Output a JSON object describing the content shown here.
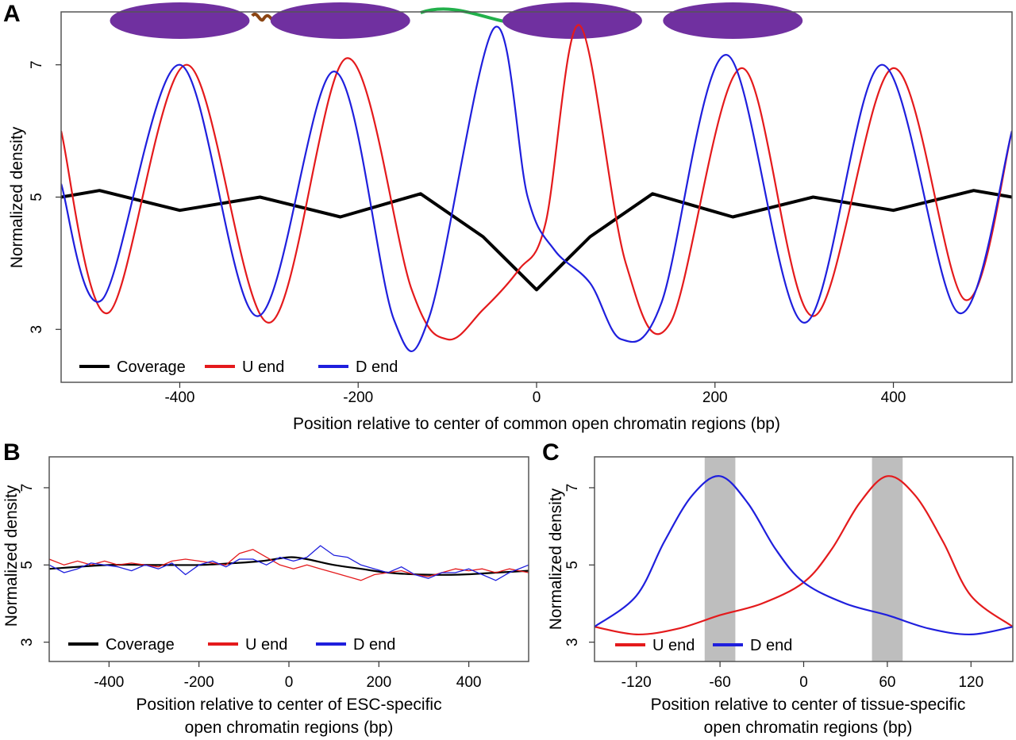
{
  "chart_data": [
    {
      "panel": "A",
      "type": "line",
      "xlabel": "Position relative to center of common open chromatin regions (bp)",
      "ylabel": "Normalized density",
      "xlim": [
        -533,
        533
      ],
      "ylim": [
        2.2,
        7.8
      ],
      "xticks": [
        -400,
        -200,
        0,
        200,
        400
      ],
      "xtick_labels": [
        "-400",
        "-200",
        "0",
        "200",
        "400"
      ],
      "yticks": [
        3,
        5,
        7
      ],
      "ytick_labels": [
        "3",
        "5",
        "7"
      ],
      "legend": "bottom-left",
      "grid": false,
      "nucleosome_diagram": {
        "nucleosomes_at": [
          -400,
          -220,
          40,
          220
        ],
        "nucleosome_color": "#7030A0",
        "linkers": [
          {
            "from": -308,
            "to": -308,
            "color": "#8B4513"
          },
          {
            "from": -130,
            "to": 50,
            "color": "#22B04B"
          },
          {
            "from": 213,
            "to": 213,
            "color": "#8B4513"
          }
        ]
      },
      "series": [
        {
          "name": "Coverage",
          "color": "#000000",
          "x": [
            -533,
            -490,
            -400,
            -310,
            -220,
            -130,
            -60,
            0,
            60,
            130,
            220,
            310,
            400,
            490,
            533
          ],
          "y": [
            5.0,
            5.1,
            4.8,
            5.0,
            4.7,
            5.05,
            4.4,
            3.6,
            4.4,
            5.05,
            4.7,
            5.0,
            4.8,
            5.1,
            5.0
          ]
        },
        {
          "name": "U end",
          "color": "#E41A1C",
          "x": [
            -533,
            -480,
            -392,
            -300,
            -213,
            -140,
            -100,
            -60,
            -20,
            10,
            48,
            100,
            150,
            230,
            310,
            400,
            480,
            533
          ],
          "y": [
            6.0,
            3.25,
            7.0,
            3.1,
            7.1,
            3.6,
            2.85,
            3.3,
            3.9,
            4.6,
            7.6,
            4.0,
            3.1,
            6.95,
            3.2,
            6.95,
            3.45,
            6.0
          ],
          "smooth": "free"
        },
        {
          "name": "D end",
          "color": "#1F1FDD",
          "x": [
            -533,
            -487,
            -400,
            -313,
            -227,
            -160,
            -120,
            -48,
            -10,
            20,
            60,
            95,
            140,
            213,
            300,
            387,
            473,
            533
          ],
          "y": [
            5.2,
            3.45,
            7.0,
            3.2,
            6.9,
            3.15,
            3.2,
            7.55,
            5.0,
            4.2,
            3.7,
            2.85,
            3.4,
            7.15,
            3.1,
            7.0,
            3.25,
            6.0
          ],
          "smooth": "free"
        }
      ]
    },
    {
      "panel": "B",
      "type": "line",
      "xlabel": "Position relative to center of ESC-specific open chromatin regions (bp)",
      "xlabel_lines": [
        "Position relative to center of ESC-specific",
        "open chromatin regions (bp)"
      ],
      "ylabel": "Normalized density",
      "xlim": [
        -533,
        533
      ],
      "ylim": [
        2.5,
        7.8
      ],
      "xticks": [
        -400,
        -200,
        0,
        200,
        400
      ],
      "xtick_labels": [
        "-400",
        "-200",
        "0",
        "200",
        "400"
      ],
      "yticks": [
        3,
        5,
        7
      ],
      "ytick_labels": [
        "3",
        "5",
        "7"
      ],
      "legend": "bottom-left",
      "grid": false,
      "series": [
        {
          "name": "Coverage",
          "color": "#000000",
          "x": [
            -533,
            -400,
            -300,
            -200,
            -120,
            -60,
            0,
            40,
            100,
            160,
            220,
            300,
            380,
            460,
            533
          ],
          "y": [
            4.9,
            5.0,
            5.0,
            5.0,
            5.05,
            5.1,
            5.2,
            5.15,
            5.0,
            4.9,
            4.8,
            4.75,
            4.75,
            4.8,
            4.85
          ],
          "smooth": "smooth"
        },
        {
          "name": "U end",
          "color": "#E41A1C",
          "x": [
            -533,
            -500,
            -470,
            -440,
            -410,
            -380,
            -350,
            -320,
            -290,
            -260,
            -230,
            -200,
            -170,
            -140,
            -110,
            -80,
            -50,
            -20,
            10,
            40,
            70,
            100,
            130,
            160,
            190,
            220,
            250,
            280,
            310,
            340,
            370,
            400,
            430,
            460,
            490,
            533
          ],
          "y": [
            5.15,
            5.0,
            5.1,
            5.0,
            5.1,
            5.0,
            5.05,
            5.0,
            4.95,
            5.1,
            5.15,
            5.1,
            5.05,
            5.0,
            5.3,
            5.4,
            5.2,
            5.0,
            4.9,
            5.0,
            4.9,
            4.8,
            4.7,
            4.6,
            4.75,
            4.8,
            4.85,
            4.75,
            4.7,
            4.8,
            4.9,
            4.85,
            4.9,
            4.8,
            4.9,
            4.8
          ]
        },
        {
          "name": "D end",
          "color": "#1F1FDD",
          "x": [
            -533,
            -500,
            -470,
            -440,
            -410,
            -380,
            -350,
            -320,
            -290,
            -260,
            -230,
            -200,
            -170,
            -140,
            -110,
            -80,
            -50,
            -20,
            10,
            40,
            70,
            100,
            130,
            160,
            190,
            220,
            250,
            280,
            310,
            340,
            370,
            400,
            430,
            460,
            490,
            533
          ],
          "y": [
            5.0,
            4.8,
            4.9,
            5.05,
            5.0,
            4.95,
            4.85,
            5.0,
            4.9,
            5.05,
            4.75,
            5.0,
            5.1,
            4.95,
            5.15,
            5.15,
            5.0,
            5.2,
            5.1,
            5.2,
            5.5,
            5.25,
            5.2,
            5.0,
            4.9,
            4.8,
            4.95,
            4.75,
            4.65,
            4.8,
            4.8,
            4.9,
            4.75,
            4.6,
            4.8,
            5.0
          ]
        }
      ]
    },
    {
      "panel": "C",
      "type": "line",
      "xlabel": "Position relative to center of tissue-specific open chromatin regions (bp)",
      "xlabel_lines": [
        "Position relative to center of tissue-specific",
        "open chromatin regions (bp)"
      ],
      "ylabel": "Normalized density",
      "xlim": [
        -150,
        150
      ],
      "ylim": [
        2.5,
        7.8
      ],
      "xticks": [
        -120,
        -60,
        0,
        60,
        120
      ],
      "xtick_labels": [
        "-120",
        "-60",
        "0",
        "60",
        "120"
      ],
      "yticks": [
        3,
        5,
        7
      ],
      "ytick_labels": [
        "3",
        "5",
        "7"
      ],
      "legend": "bottom-left",
      "grid": false,
      "shaded_bands": [
        {
          "from": -71,
          "to": -49,
          "color": "#BEBEBE"
        },
        {
          "from": 49,
          "to": 71,
          "color": "#BEBEBE"
        }
      ],
      "series": [
        {
          "name": "U end",
          "color": "#E41A1C",
          "x": [
            -150,
            -120,
            -90,
            -60,
            -30,
            0,
            20,
            40,
            60,
            80,
            100,
            120,
            150
          ],
          "y": [
            3.4,
            3.2,
            3.35,
            3.7,
            4.0,
            4.55,
            5.4,
            6.6,
            7.3,
            6.8,
            5.6,
            4.2,
            3.4
          ],
          "smooth": "smooth"
        },
        {
          "name": "D end",
          "color": "#1F1FDD",
          "x": [
            -150,
            -120,
            -100,
            -80,
            -60,
            -40,
            -20,
            0,
            30,
            60,
            90,
            120,
            150
          ],
          "y": [
            3.4,
            4.2,
            5.6,
            6.8,
            7.3,
            6.6,
            5.4,
            4.55,
            4.0,
            3.7,
            3.35,
            3.2,
            3.4
          ],
          "smooth": "smooth"
        }
      ]
    }
  ]
}
